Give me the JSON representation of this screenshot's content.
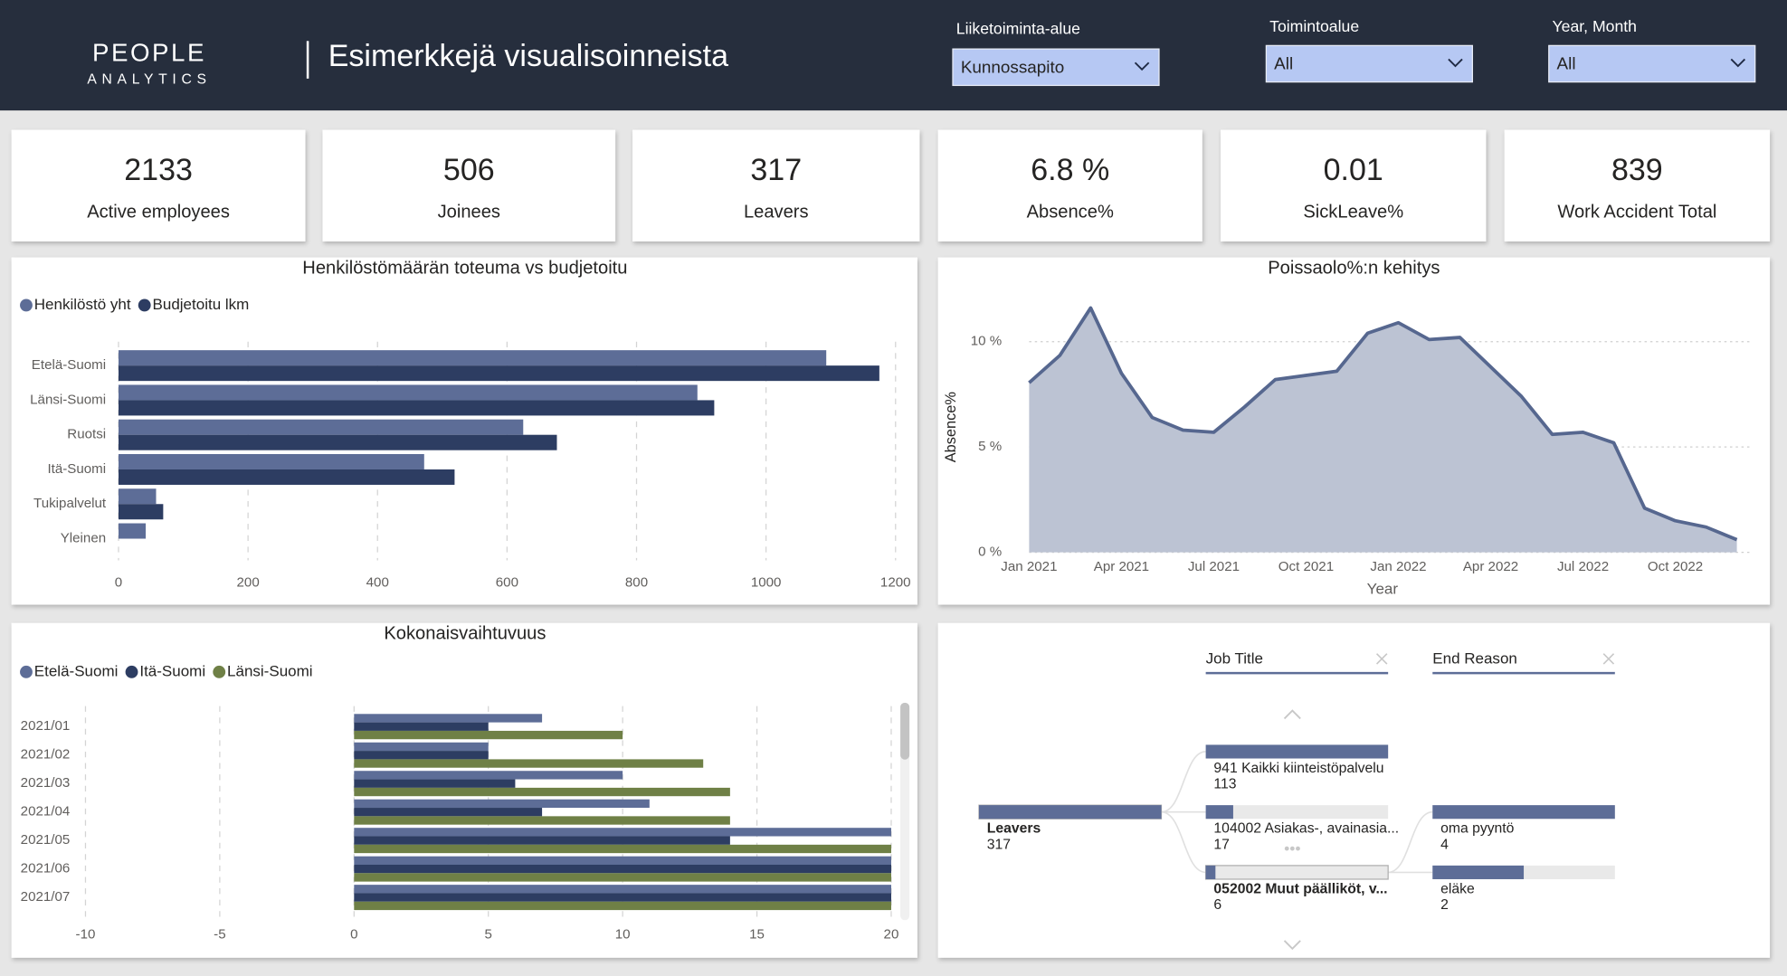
{
  "header": {
    "logo_top": "PEOPLE",
    "logo_bottom": "ANALYTICS",
    "title": "Esimerkkejä visualisoinneista"
  },
  "filters": [
    {
      "label": "Liiketoiminta-alue",
      "value": "Kunnossapito"
    },
    {
      "label": "Toimintoalue",
      "value": "All"
    },
    {
      "label": "Year, Month",
      "value": "All"
    }
  ],
  "kpis": [
    {
      "value": 2133,
      "label": "Active employees"
    },
    {
      "value": 506,
      "label": "Joinees"
    },
    {
      "value": 317,
      "label": "Leavers"
    },
    {
      "value": "6.8 %",
      "label": "Absence%"
    },
    {
      "value": 0.01,
      "label": "SickLeave%"
    },
    {
      "value": 839,
      "label": "Work Accident Total"
    }
  ],
  "chart_data": [
    {
      "type": "bar",
      "orientation": "horizontal",
      "title": "Henkilöstömäärän toteuma vs budjetoitu",
      "categories": [
        "Etelä-Suomi",
        "Länsi-Suomi",
        "Ruotsi",
        "Itä-Suomi",
        "Tukipalvelut",
        "Yleinen"
      ],
      "series": [
        {
          "name": "Henkilöstö yht",
          "color": "#5d6d97",
          "values": [
            1093,
            894,
            625,
            472,
            58,
            42
          ]
        },
        {
          "name": "Budjetoitu lkm",
          "color": "#2d3d62",
          "values": [
            1175,
            920,
            677,
            519,
            69,
            null
          ]
        }
      ],
      "xlim": [
        0,
        1225
      ],
      "xticks": [
        0,
        200,
        400,
        600,
        800,
        1000,
        1200
      ],
      "grid": true,
      "legend": "top-left"
    },
    {
      "type": "area",
      "title": "Poissaolo%:n kehitys",
      "x": [
        "2021-01",
        "2021-02",
        "2021-03",
        "2021-04",
        "2021-05",
        "2021-06",
        "2021-07",
        "2021-08",
        "2021-09",
        "2021-10",
        "2021-11",
        "2021-12",
        "2022-01",
        "2022-02",
        "2022-03",
        "2022-04",
        "2022-05",
        "2022-06",
        "2022-07",
        "2022-08",
        "2022-09",
        "2022-10",
        "2022-11",
        "2022-12"
      ],
      "values": [
        8.05,
        9.35,
        11.6,
        8.5,
        6.4,
        5.8,
        5.7,
        6.9,
        8.2,
        8.4,
        8.6,
        10.4,
        10.9,
        10.1,
        10.2,
        8.8,
        7.4,
        5.6,
        5.7,
        5.2,
        2.1,
        1.5,
        1.2,
        0.6
      ],
      "color": "#56678f",
      "fill_color": "#bcc3d3",
      "ylim": [
        0,
        12
      ],
      "yticks": [
        {
          "value": 0,
          "label": "0 %"
        },
        {
          "value": 5,
          "label": "5 %"
        },
        {
          "value": 10,
          "label": "10 %"
        }
      ],
      "xticks": [
        {
          "value": "2021-01",
          "label": "Jan 2021"
        },
        {
          "value": "2021-04",
          "label": "Apr 2021"
        },
        {
          "value": "2021-07",
          "label": "Jul 2021"
        },
        {
          "value": "2021-10",
          "label": "Oct 2021"
        },
        {
          "value": "2022-01",
          "label": "Jan 2022"
        },
        {
          "value": "2022-04",
          "label": "Apr 2022"
        },
        {
          "value": "2022-07",
          "label": "Jul 2022"
        },
        {
          "value": "2022-10",
          "label": "Oct 2022"
        }
      ],
      "xlabel": "Year",
      "ylabel": "Absence%",
      "grid": true
    },
    {
      "type": "bar",
      "orientation": "horizontal",
      "title": "Kokonaisvaihtuvuus",
      "categories": [
        "2021/01",
        "2021/02",
        "2021/03",
        "2021/04",
        "2021/05",
        "2021/06",
        "2021/07"
      ],
      "series": [
        {
          "name": "Etelä-Suomi",
          "color": "#5d6d97",
          "values": [
            7,
            5,
            10,
            11,
            20,
            20,
            20
          ]
        },
        {
          "name": "Itä-Suomi",
          "color": "#2d3d62",
          "values": [
            5,
            5,
            6,
            7,
            14,
            20,
            20
          ]
        },
        {
          "name": "Länsi-Suomi",
          "color": "#6f8046",
          "values": [
            10,
            13,
            14,
            14,
            20,
            20,
            20
          ]
        }
      ],
      "xlim": [
        -10,
        20
      ],
      "xticks": [
        -10,
        -5,
        0,
        5,
        10,
        15,
        20
      ],
      "grid": true,
      "legend": "top-left"
    }
  ],
  "decomposition": {
    "headers": [
      "Job Title",
      "End Reason"
    ],
    "root": {
      "label": "Leavers",
      "value": 317
    },
    "job_title": [
      {
        "label": "941 Kaikki kiinteistöpalvelu",
        "value": 113
      },
      {
        "label": "104002 Asiakas-, avainasia...",
        "value": 17
      },
      {
        "label": "052002 Muut päälliköt, v...",
        "value": 6
      }
    ],
    "end_reason": [
      {
        "label": "oma pyyntö",
        "value": 4
      },
      {
        "label": "eläke",
        "value": 2
      }
    ]
  }
}
